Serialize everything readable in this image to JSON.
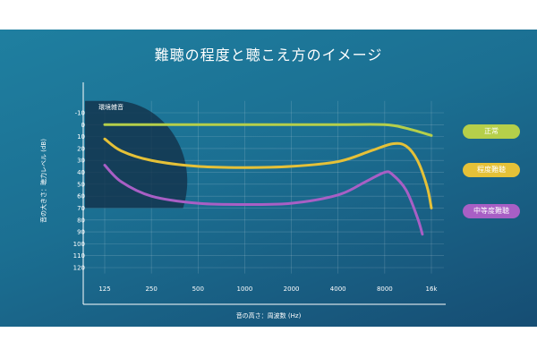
{
  "chart_data": {
    "type": "line",
    "title": "難聴の程度と聴こえ方のイメージ",
    "xlabel": "音の高さ：周波数 (Hz)",
    "ylabel": "音の大きさ：聴力レベル (dB)",
    "x_scale": "log2",
    "x_ticks": [
      "125",
      "250",
      "500",
      "1000",
      "2000",
      "4000",
      "8000",
      "16k"
    ],
    "x_tick_values": [
      125,
      250,
      500,
      1000,
      2000,
      4000,
      8000,
      16000
    ],
    "y_ticks": [
      -10,
      0,
      10,
      20,
      30,
      40,
      50,
      60,
      70,
      80,
      90,
      100,
      110,
      120
    ],
    "y_inverted": true,
    "ylim": [
      -20,
      125
    ],
    "grid": true,
    "legend_placement": "right",
    "region": {
      "label": "環境雑音",
      "x_max": 400,
      "y_min": -20,
      "y_max": 70
    },
    "series": [
      {
        "name": "正常",
        "color": "#b5cf4a",
        "points": [
          [
            125,
            0
          ],
          [
            250,
            0
          ],
          [
            500,
            0
          ],
          [
            1000,
            0
          ],
          [
            2000,
            0
          ],
          [
            4000,
            0
          ],
          [
            8000,
            0
          ],
          [
            11000,
            3
          ],
          [
            16000,
            9
          ]
        ]
      },
      {
        "name": "程度難聴",
        "color": "#e5c138",
        "points": [
          [
            125,
            12
          ],
          [
            160,
            22
          ],
          [
            250,
            30
          ],
          [
            500,
            35
          ],
          [
            1000,
            36
          ],
          [
            2000,
            35
          ],
          [
            4000,
            31
          ],
          [
            6500,
            22
          ],
          [
            9000,
            16
          ],
          [
            11000,
            18
          ],
          [
            13000,
            30
          ],
          [
            15000,
            52
          ],
          [
            16000,
            70
          ]
        ]
      },
      {
        "name": "中等度難聴",
        "color": "#a85fc5",
        "points": [
          [
            125,
            34
          ],
          [
            160,
            48
          ],
          [
            250,
            60
          ],
          [
            500,
            66
          ],
          [
            1000,
            67
          ],
          [
            2000,
            66
          ],
          [
            4000,
            59
          ],
          [
            6000,
            48
          ],
          [
            8000,
            40
          ],
          [
            9000,
            42
          ],
          [
            11000,
            55
          ],
          [
            13000,
            78
          ],
          [
            14000,
            92
          ]
        ]
      }
    ]
  }
}
